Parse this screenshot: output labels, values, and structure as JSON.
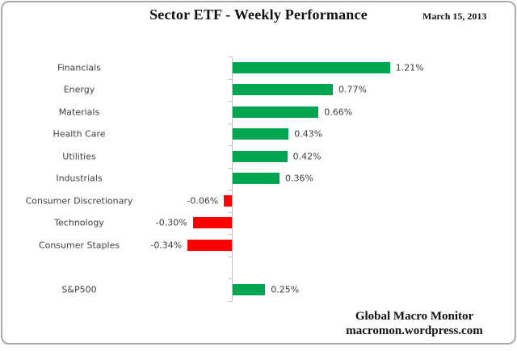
{
  "header": {
    "title": "Sector ETF - Weekly Performance",
    "date": "March 15, 2013"
  },
  "chart_data": {
    "type": "bar",
    "orientation": "horizontal",
    "title": "Sector ETF - Weekly Performance",
    "xlabel": "",
    "ylabel": "",
    "categories": [
      "Financials",
      "Energy",
      "Materials",
      "Health Care",
      "Utilities",
      "Industrials",
      "Consumer Discretionary",
      "Technology",
      "Consumer Staples",
      "",
      "S&P500"
    ],
    "values": [
      1.21,
      0.77,
      0.66,
      0.43,
      0.42,
      0.36,
      -0.06,
      -0.3,
      -0.34,
      null,
      0.25
    ],
    "value_labels": [
      "1.21%",
      "0.77%",
      "0.66%",
      "0.43%",
      "0.42%",
      "0.36%",
      "-0.06%",
      "-0.30%",
      "-0.34%",
      "",
      "0.25%"
    ],
    "unit": "%",
    "positive_color": "#00a551",
    "negative_color": "#fe0000",
    "axis_color": "#bfbfbf",
    "text_color": "#3f3f3f",
    "xlim": [
      -0.55,
      2.15
    ],
    "gridlines": false,
    "x_axis_labels_visible": false,
    "value_label_position": "outside-end",
    "legend": "none"
  },
  "footer": {
    "line1": "Global Macro Monitor",
    "line2": "macromon.wordpress.com"
  }
}
